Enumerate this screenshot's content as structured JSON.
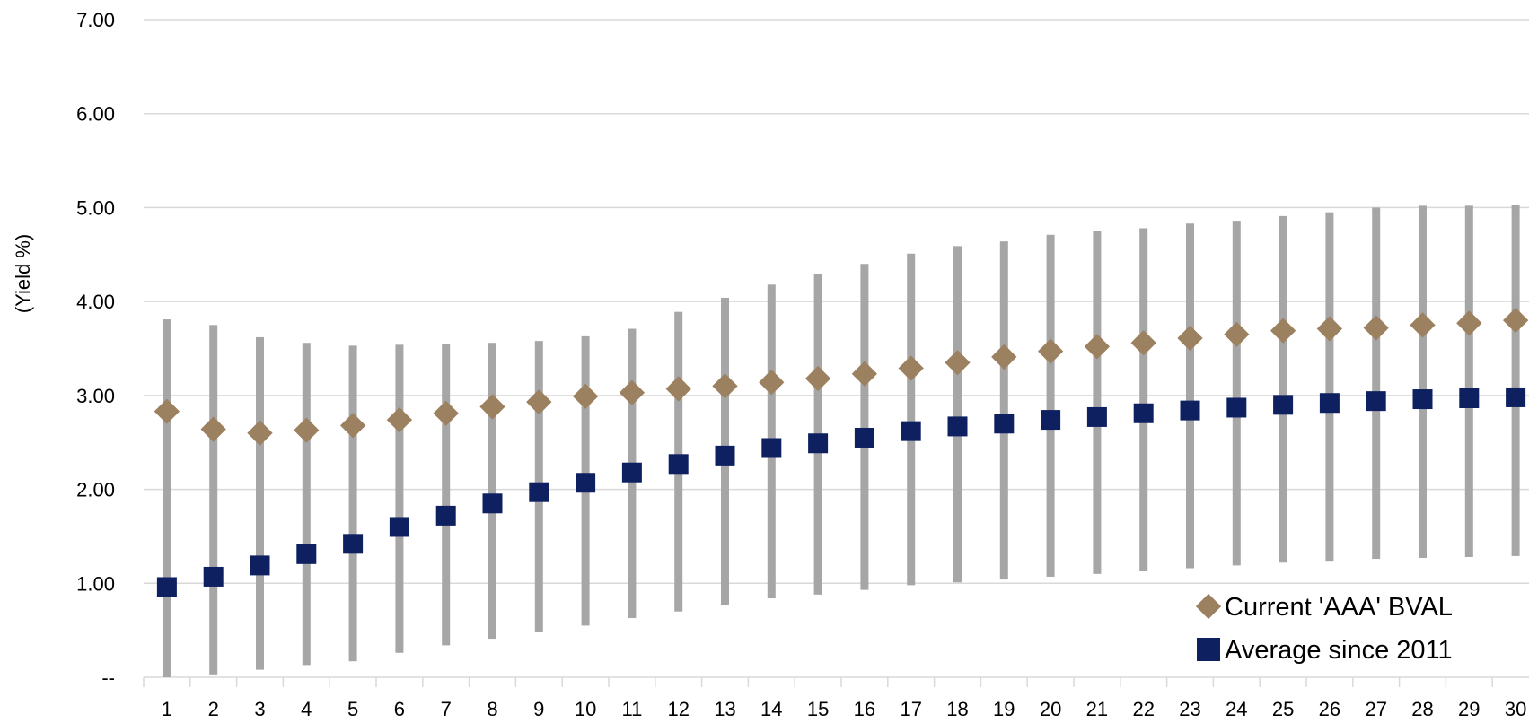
{
  "chart_data": {
    "type": "scatter",
    "title": "",
    "xlabel": "",
    "ylabel": "(Yield %)",
    "x": [
      1,
      2,
      3,
      4,
      5,
      6,
      7,
      8,
      9,
      10,
      11,
      12,
      13,
      14,
      15,
      16,
      17,
      18,
      19,
      20,
      21,
      22,
      23,
      24,
      25,
      26,
      27,
      28,
      29,
      30
    ],
    "ylim": [
      0,
      7
    ],
    "yticks": [
      0,
      1,
      2,
      3,
      4,
      5,
      6,
      7
    ],
    "ytick_labels": [
      "--",
      "1.00",
      "2.00",
      "3.00",
      "4.00",
      "5.00",
      "6.00",
      "7.00"
    ],
    "grid": true,
    "legend_position": "bottom-right",
    "range_bars": {
      "low": [
        0.0,
        0.03,
        0.08,
        0.13,
        0.17,
        0.26,
        0.34,
        0.41,
        0.48,
        0.55,
        0.63,
        0.7,
        0.77,
        0.84,
        0.88,
        0.93,
        0.98,
        1.01,
        1.04,
        1.07,
        1.1,
        1.13,
        1.16,
        1.19,
        1.22,
        1.24,
        1.26,
        1.27,
        1.28,
        1.29
      ],
      "high": [
        3.81,
        3.75,
        3.62,
        3.56,
        3.53,
        3.54,
        3.55,
        3.56,
        3.58,
        3.63,
        3.71,
        3.89,
        4.04,
        4.18,
        4.29,
        4.4,
        4.51,
        4.59,
        4.64,
        4.71,
        4.75,
        4.78,
        4.83,
        4.86,
        4.91,
        4.95,
        5.0,
        5.02,
        5.02,
        5.03
      ]
    },
    "series": [
      {
        "name": "Current 'AAA' BVAL",
        "marker": "diamond",
        "values": [
          2.83,
          2.64,
          2.6,
          2.63,
          2.68,
          2.74,
          2.81,
          2.88,
          2.93,
          2.99,
          3.03,
          3.07,
          3.1,
          3.14,
          3.18,
          3.23,
          3.29,
          3.35,
          3.41,
          3.47,
          3.52,
          3.56,
          3.61,
          3.65,
          3.69,
          3.71,
          3.72,
          3.75,
          3.77,
          3.8
        ]
      },
      {
        "name": "Average since 2011",
        "marker": "square",
        "values": [
          0.96,
          1.07,
          1.19,
          1.31,
          1.42,
          1.6,
          1.72,
          1.85,
          1.97,
          2.07,
          2.18,
          2.27,
          2.36,
          2.44,
          2.49,
          2.55,
          2.62,
          2.67,
          2.7,
          2.74,
          2.77,
          2.81,
          2.84,
          2.87,
          2.9,
          2.92,
          2.94,
          2.96,
          2.97,
          2.98
        ]
      }
    ],
    "colors": {
      "gridline": "#d9d9d9",
      "range_bar": "#a6a6a6",
      "current": "#9c8160",
      "average": "#0e2060"
    }
  }
}
